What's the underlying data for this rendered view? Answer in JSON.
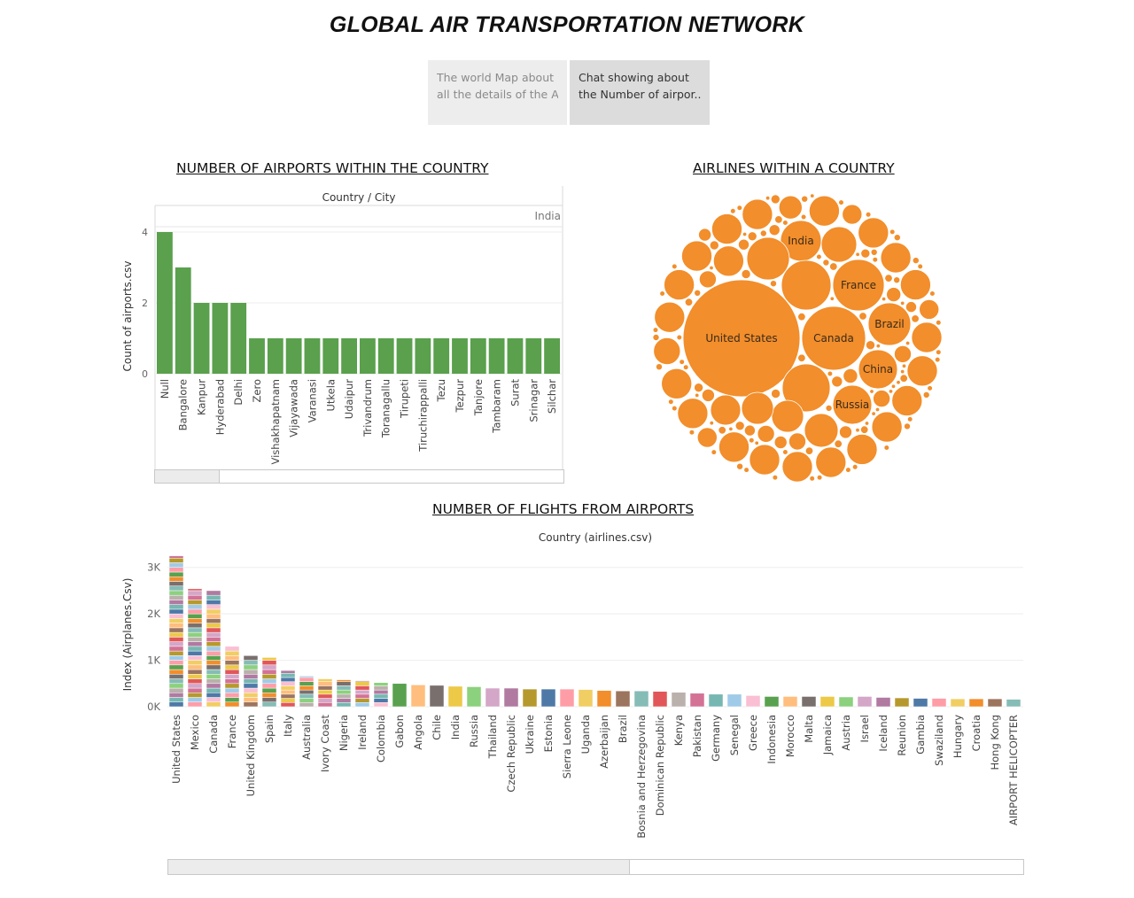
{
  "page": {
    "title": "GLOBAL AIR TRANSPORTATION NETWORK",
    "tabs": [
      {
        "line1": "The world Map about",
        "line2": "all the details of the A.."
      },
      {
        "line1": "Chat showing about",
        "line2": "the Number of airpor.."
      }
    ]
  },
  "colors": {
    "airports_bar": "#5aa04d",
    "bubbles": "#f28e2b",
    "palette": [
      "#4e79a7",
      "#f28e2b",
      "#e15759",
      "#76b7b2",
      "#59a14f",
      "#edc948",
      "#b07aa1",
      "#ff9da7",
      "#9c755f",
      "#bab0ac",
      "#a0cbe8",
      "#ffbe7d",
      "#8cd17d",
      "#b6992d",
      "#f1ce63",
      "#86bcb6",
      "#d37295",
      "#fabfd2",
      "#79706e",
      "#d4a6c8"
    ]
  },
  "chart_data": [
    {
      "type": "bar",
      "title": "NUMBER OF AIRPORTS WITHIN THE COUNTRY",
      "header": "Country / City",
      "group_label": "India",
      "ylabel": "Count of airports.csv",
      "ylim": [
        0,
        4.75
      ],
      "yticks": [
        "0",
        "2",
        "4"
      ],
      "categories": [
        "Null",
        "Bangalore",
        "Kanpur",
        "Hyderabad",
        "Delhi",
        "Zero",
        "Vishakhapatnam",
        "Vijayawada",
        "Varanasi",
        "Utkela",
        "Udaipur",
        "Trivandrum",
        "Toranagallu",
        "Tirupeti",
        "Tiruchirappalli",
        "Tezu",
        "Tezpur",
        "Tanjore",
        "Tambaram",
        "Surat",
        "Srinagar",
        "Silchar"
      ],
      "values": [
        4,
        3,
        2,
        2,
        2,
        1,
        1,
        1,
        1,
        1,
        1,
        1,
        1,
        1,
        1,
        1,
        1,
        1,
        1,
        1,
        1,
        1
      ]
    },
    {
      "type": "bubble",
      "title": "AIRLINES WITHIN A COUNTRY",
      "labeled_bubbles": [
        "United States",
        "Canada",
        "France",
        "India",
        "Brazil",
        "China",
        "Russia"
      ]
    },
    {
      "type": "bar",
      "stacked": true,
      "title": "NUMBER OF FLIGHTS FROM AIRPORTS",
      "header": "Country (airlines.csv)",
      "ylabel": "Index (Airplanes.Csv)",
      "ylim": [
        0,
        3300
      ],
      "yticks": [
        "0K",
        "1K",
        "2K",
        "3K"
      ],
      "categories": [
        "United States",
        "Mexico",
        "Canada",
        "France",
        "United Kingdom",
        "Spain",
        "Italy",
        "Australia",
        "Ivory Coast",
        "Nigeria",
        "Ireland",
        "Colombia",
        "Gabon",
        "Angola",
        "Chile",
        "India",
        "Russia",
        "Thailand",
        "Czech Republic",
        "Ukraine",
        "Estonia",
        "Sierra Leone",
        "Uganda",
        "Azerbaijan",
        "Brazil",
        "Bosnia and Herzegovina",
        "Dominican Republic",
        "Kenya",
        "Pakistan",
        "Germany",
        "Senegal",
        "Greece",
        "Indonesia",
        "Morocco",
        "Malta",
        "Jamaica",
        "Austria",
        "Israel",
        "Iceland",
        "Reunion",
        "Gambia",
        "Swaziland",
        "Hungary",
        "Croatia",
        "Hong Kong",
        "AIRPORT HELICOPTER"
      ],
      "values": [
        3250,
        2540,
        2500,
        1300,
        1100,
        1060,
        780,
        660,
        600,
        580,
        560,
        520,
        500,
        470,
        460,
        440,
        430,
        400,
        400,
        380,
        380,
        380,
        370,
        350,
        340,
        340,
        330,
        310,
        290,
        270,
        270,
        240,
        220,
        220,
        220,
        220,
        210,
        220,
        200,
        190,
        180,
        180,
        170,
        170,
        170,
        160
      ]
    }
  ]
}
